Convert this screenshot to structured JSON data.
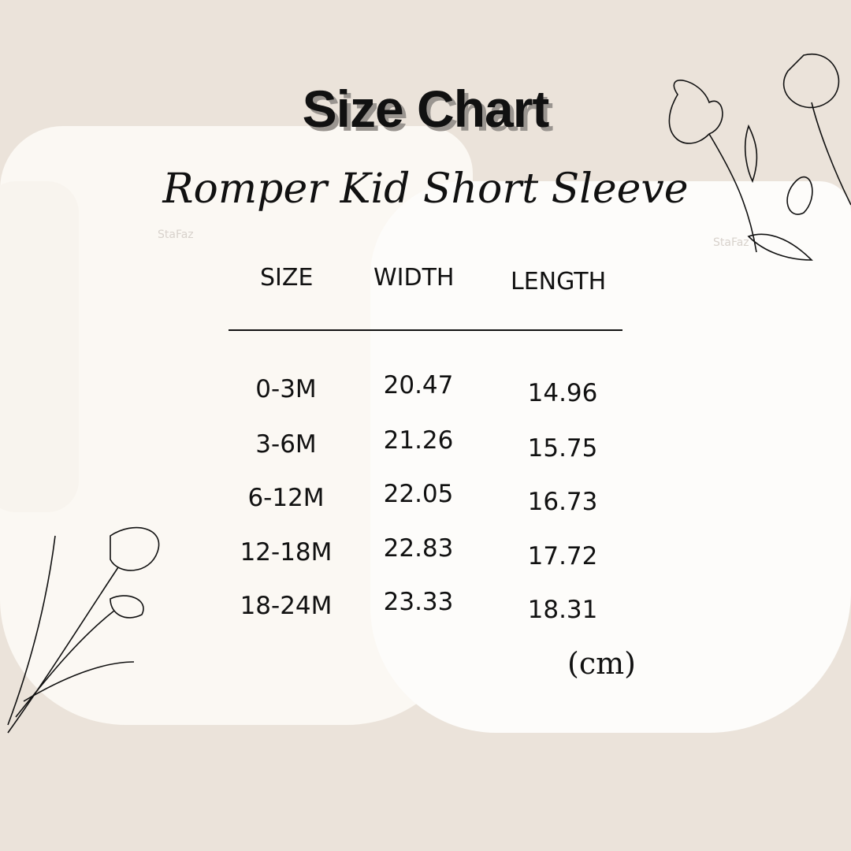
{
  "title": "Size Chart",
  "subtitle": "Romper Kid Short Sleeve",
  "watermark": "StaFaz",
  "table": {
    "headers": [
      "SIZE",
      "WIDTH",
      "LENGTH"
    ],
    "rows": [
      [
        "0-3M",
        "20.47",
        "14.96"
      ],
      [
        "3-6M",
        "21.26",
        "15.75"
      ],
      [
        "6-12M",
        "22.05",
        "16.73"
      ],
      [
        "12-18M",
        "22.83",
        "17.72"
      ],
      [
        "18-24M",
        "23.33",
        "18.31"
      ]
    ]
  },
  "unit": "(cm)",
  "colors": {
    "background": "#ebe3da",
    "text": "#111111",
    "title_shadow": "#9a9590"
  }
}
